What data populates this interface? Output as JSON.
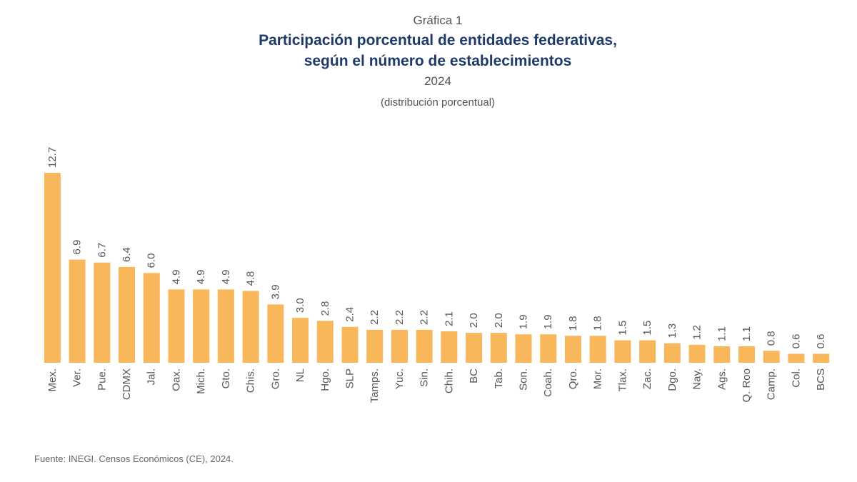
{
  "chart_data": {
    "type": "bar",
    "label": "Gráfica 1",
    "title": [
      "Participación porcentual de entidades federativas,",
      "según el número de establecimientos"
    ],
    "subtitle": "2024",
    "note": "(distribución porcentual)",
    "categories": [
      "Mex.",
      "Ver.",
      "Pue.",
      "CDMX",
      "Jal.",
      "Oax.",
      "Mich.",
      "Gto.",
      "Chis.",
      "Gro.",
      "NL",
      "Hgo.",
      "SLP",
      "Tamps.",
      "Yuc.",
      "Sin.",
      "Chih.",
      "BC",
      "Tab.",
      "Son.",
      "Coah.",
      "Qro.",
      "Mor.",
      "Tlax.",
      "Zac.",
      "Dgo.",
      "Nay.",
      "Ags.",
      "Q. Roo",
      "Camp.",
      "Col.",
      "BCS"
    ],
    "values": [
      12.7,
      6.9,
      6.7,
      6.4,
      6.0,
      4.9,
      4.9,
      4.9,
      4.8,
      3.9,
      3.0,
      2.8,
      2.4,
      2.2,
      2.2,
      2.2,
      2.1,
      2.0,
      2.0,
      1.9,
      1.9,
      1.8,
      1.8,
      1.5,
      1.5,
      1.3,
      1.2,
      1.1,
      1.1,
      0.8,
      0.6,
      0.6
    ],
    "value_labels": [
      "12.7",
      "6.9",
      "6.7",
      "6.4",
      "6.0",
      "4.9",
      "4.9",
      "4.9",
      "4.8",
      "3.9",
      "3.0",
      "2.8",
      "2.4",
      "2.2",
      "2.2",
      "2.2",
      "2.1",
      "2.0",
      "2.0",
      "1.9",
      "1.9",
      "1.8",
      "1.8",
      "1.5",
      "1.5",
      "1.3",
      "1.2",
      "1.1",
      "1.1",
      "0.8",
      "0.6",
      "0.6"
    ],
    "color": "#f7b75a",
    "source": "Fuente: INEGI. Censos Económicos (CE), 2024."
  }
}
